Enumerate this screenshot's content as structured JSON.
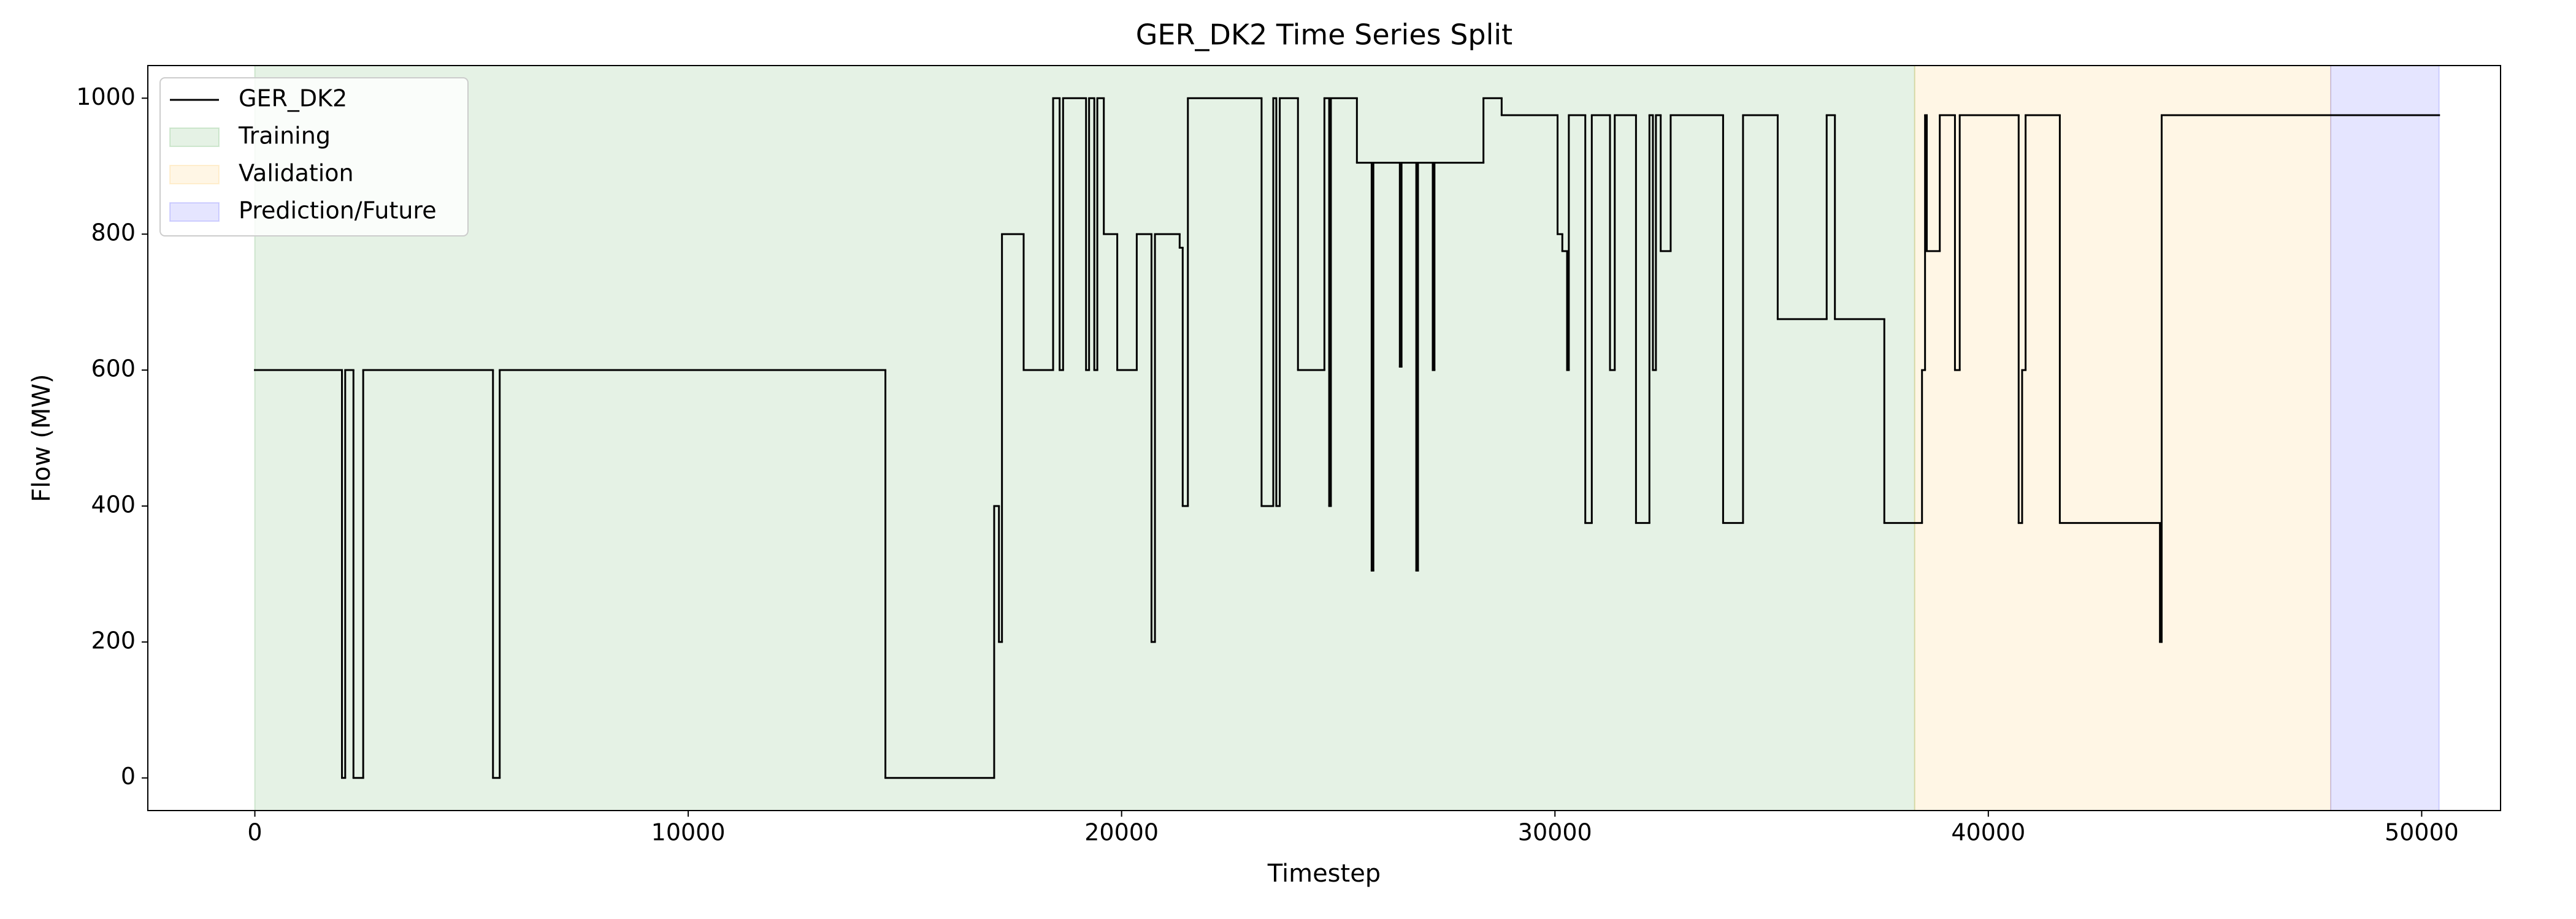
{
  "chart_data": {
    "type": "step",
    "title": "GER_DK2 Time Series Split",
    "xlabel": "Timestep",
    "ylabel": "Flow (MW)",
    "x": [
      0,
      2010,
      2085,
      2275,
      2500,
      5495,
      5650,
      14550,
      17060,
      17170,
      17240,
      17740,
      18420,
      18570,
      18650,
      19180,
      19250,
      19370,
      19440,
      19590,
      19900,
      20350,
      20690,
      20770,
      21340,
      21410,
      21530,
      23230,
      23500,
      23570,
      23650,
      24070,
      24680,
      24790,
      24830,
      25430,
      25770,
      25810,
      26420,
      26460,
      26800,
      26840,
      27180,
      27220,
      28350,
      28770,
      30060,
      30170,
      30280,
      30320,
      30700,
      30850,
      31270,
      31380,
      31870,
      32180,
      32260,
      32330,
      32440,
      32670,
      33880,
      34340,
      35140,
      36270,
      36460,
      37600,
      38470,
      38540,
      38580,
      38880,
      39230,
      39340,
      40700,
      40780,
      40860,
      41650,
      43960,
      44000,
      50400
    ],
    "series": [
      {
        "name": "GER_DK2",
        "color": "#000000",
        "values": [
          600,
          0,
          600,
          0,
          600,
          0,
          600,
          0,
          400,
          200,
          800,
          600,
          1000,
          600,
          1000,
          600,
          1000,
          600,
          1000,
          800,
          600,
          800,
          200,
          800,
          780,
          400,
          1000,
          400,
          1000,
          400,
          1000,
          600,
          1000,
          400,
          1000,
          905,
          305,
          905,
          605,
          905,
          305,
          905,
          600,
          905,
          1000,
          975,
          800,
          775,
          600,
          975,
          375,
          975,
          600,
          975,
          375,
          975,
          600,
          975,
          775,
          975,
          375,
          975,
          675,
          975,
          675,
          375,
          600,
          975,
          775,
          975,
          600,
          975,
          375,
          600,
          975,
          375,
          200,
          975,
          975
        ]
      }
    ],
    "spans": [
      {
        "name": "Training",
        "color": "#008000",
        "start": 0,
        "end": 38300
      },
      {
        "name": "Validation",
        "color": "#ffa500",
        "start": 38300,
        "end": 47900
      },
      {
        "name": "Prediction/Future",
        "color": "#0000ff",
        "start": 47900,
        "end": 50400
      }
    ],
    "xlim": [
      -2470,
      51820
    ],
    "ylim": [
      -48,
      1048
    ],
    "xticks": [
      0,
      10000,
      20000,
      30000,
      40000,
      50000
    ],
    "yticks": [
      0,
      200,
      400,
      600,
      800,
      1000
    ],
    "legend": "upper left"
  }
}
